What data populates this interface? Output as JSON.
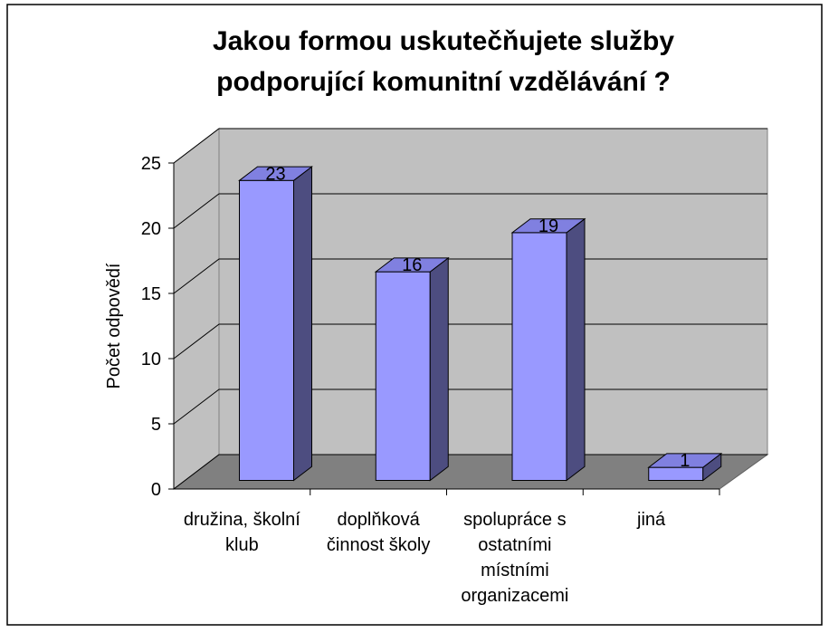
{
  "chart_data": {
    "type": "bar3d",
    "title": "Jakou formou uskutečňujete služby podporující komunitní vzdělávání ?",
    "y_label": "Počet odpovědí",
    "categories": [
      "družina, školní klub",
      "doplňková činnost školy",
      "spolupráce s ostatními místními organizacemi",
      "jiná"
    ],
    "values": [
      23,
      16,
      19,
      1
    ],
    "color": "#9999ff",
    "ylim": [
      0,
      25
    ],
    "yticks": [
      0,
      5,
      10,
      15,
      20,
      25
    ],
    "grid": true
  }
}
